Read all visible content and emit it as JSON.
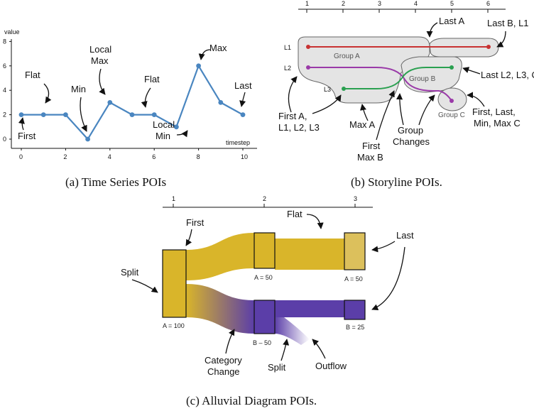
{
  "captions": {
    "a": "(a) Time Series POIs",
    "b": "(b) Storyline POIs.",
    "c": "(c) Alluvial Diagram POIs."
  },
  "timeseries": {
    "axis_y_label": "value",
    "axis_x_label": "timestep",
    "y_ticks": [
      "0",
      "2",
      "4",
      "6",
      "8"
    ],
    "x_ticks": [
      "0",
      "2",
      "4",
      "6",
      "8",
      "10"
    ],
    "line_color": "#4a86c0",
    "points": [
      {
        "t": 0,
        "v": 2
      },
      {
        "t": 1,
        "v": 2
      },
      {
        "t": 2,
        "v": 2
      },
      {
        "t": 3,
        "v": 0
      },
      {
        "t": 4,
        "v": 3
      },
      {
        "t": 5,
        "v": 2
      },
      {
        "t": 6,
        "v": 2
      },
      {
        "t": 7,
        "v": 1
      },
      {
        "t": 8,
        "v": 6
      },
      {
        "t": 9,
        "v": 3
      },
      {
        "t": 10,
        "v": 2
      }
    ],
    "annotations": {
      "first": "First",
      "flat1": "Flat",
      "min": "Min",
      "local_max_1": "Local",
      "local_max_2": "Max",
      "flat2": "Flat",
      "local_min_1": "Local",
      "local_min_2": "Min",
      "max": "Max",
      "last": "Last"
    }
  },
  "storyline": {
    "axis_ticks": [
      "1",
      "2",
      "3",
      "4",
      "5",
      "6"
    ],
    "line_labels": [
      "L1",
      "L2",
      "L3"
    ],
    "group_labels": [
      "Group A",
      "Group B",
      "Group C"
    ],
    "colors": {
      "L1": "#c83232",
      "L2": "#9a3aa8",
      "L3": "#2aa050",
      "group_fill": "#e4e4e4"
    },
    "annotations": {
      "last_a": "Last A",
      "last_b_l1": "Last B, L1",
      "last_l2": "Last L2, L3, C",
      "first_a_1": "First A,",
      "first_a_2": "L1, L2, L3",
      "max_a": "Max A",
      "first_max_b_1": "First",
      "first_max_b_2": "Max B",
      "group_changes_1": "Group",
      "group_changes_2": "Changes",
      "first_last_c_1": "First, Last,",
      "first_last_c_2": "Min, Max C"
    }
  },
  "alluvial": {
    "axis_ticks": [
      "1",
      "2",
      "3"
    ],
    "colors": {
      "yellow": "#d9b52a",
      "yellow_light": "#dcc05c",
      "purple": "#5b3ea8"
    },
    "node_labels": {
      "n1": "A = 100",
      "n2a": "A = 50",
      "n3a": "A = 50",
      "n2b": "B – 50",
      "n3b": "B = 25"
    },
    "annotations": {
      "first": "First",
      "flat": "Flat",
      "last": "Last",
      "split1": "Split",
      "category_1": "Category",
      "category_2": "Change",
      "split2": "Split",
      "outflow": "Outflow"
    }
  }
}
